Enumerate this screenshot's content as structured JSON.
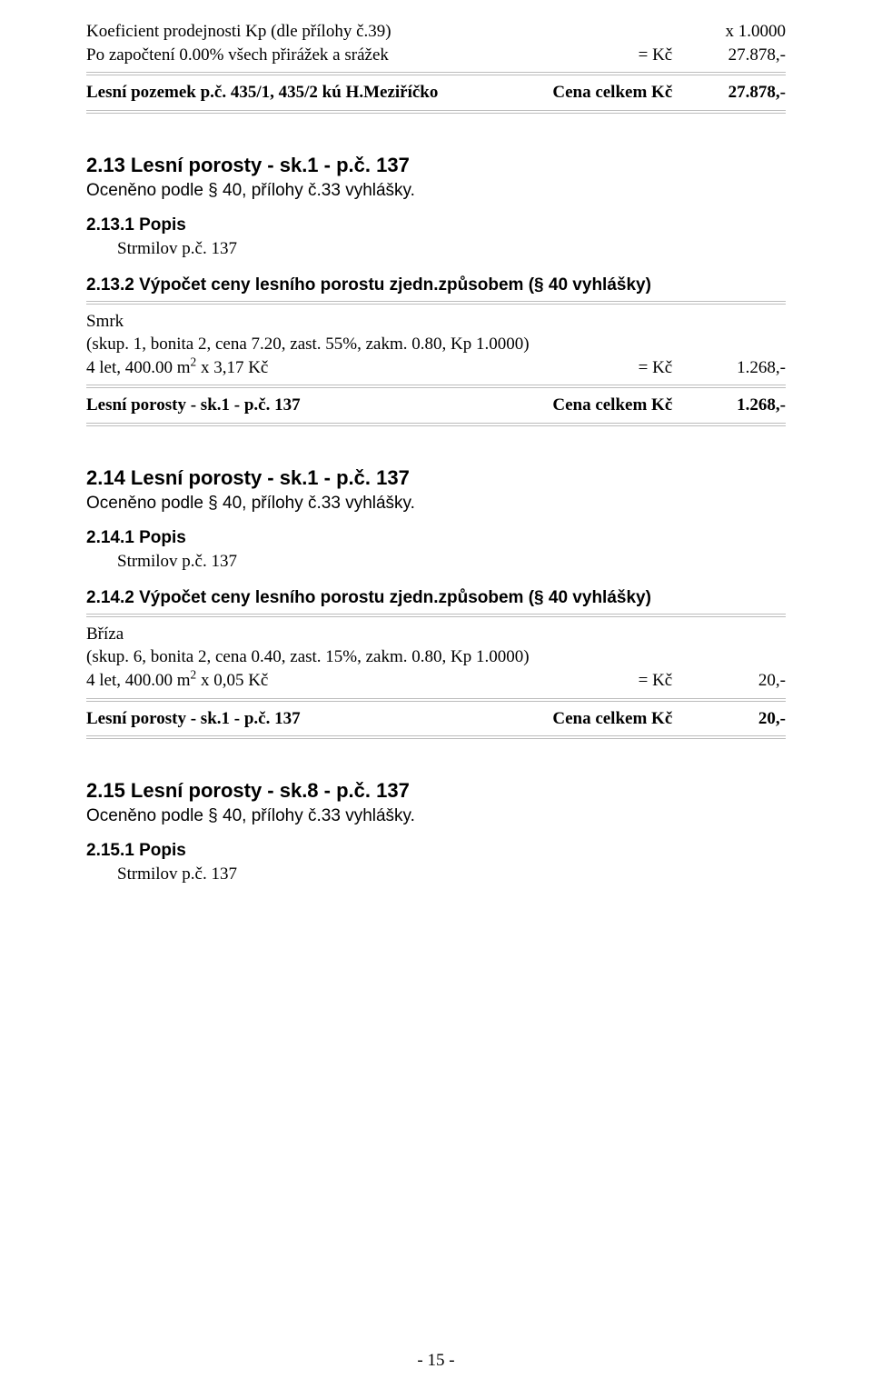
{
  "top": {
    "kp_line_left": "Koeficient prodejnosti Kp (dle přílohy č.39)",
    "kp_line_right": "x 1.0000",
    "zap_left": "Po započtení 0.00% všech přirážek a srážek",
    "zap_eq": "= Kč",
    "zap_val": "27.878,-",
    "total_left": "Lesní pozemek p.č. 435/1, 435/2 kú H.Meziříčko",
    "total_mid": "Cena celkem Kč",
    "total_val": "27.878,-"
  },
  "s13": {
    "heading": "2.13 Lesní porosty - sk.1 - p.č. 137",
    "sub": "Oceněno podle § 40, přílohy č.33 vyhlášky.",
    "popis_h": "2.13.1 Popis",
    "popis_txt": "Strmilov p.č. 137",
    "vypocet_h": "2.13.2 Výpočet ceny lesního porostu zjedn.způsobem (§ 40 vyhlášky)",
    "species": "Smrk",
    "skup": "(skup. 1, bonita 2, cena 7.20, zast. 55%, zakm. 0.80, Kp 1.0000)",
    "line_left_a": "4 let, 400.00 m",
    "line_left_sup": "2",
    "line_left_b": " x 3,17 Kč",
    "eq": "= Kč",
    "val": "1.268,-",
    "total_left": "Lesní porosty - sk.1 - p.č. 137",
    "total_mid": "Cena celkem Kč",
    "total_val": "1.268,-"
  },
  "s14": {
    "heading": "2.14 Lesní porosty - sk.1 - p.č. 137",
    "sub": "Oceněno podle § 40, přílohy č.33 vyhlášky.",
    "popis_h": "2.14.1 Popis",
    "popis_txt": "Strmilov p.č. 137",
    "vypocet_h": "2.14.2 Výpočet ceny lesního porostu zjedn.způsobem (§ 40 vyhlášky)",
    "species": "Bříza",
    "skup": "(skup. 6, bonita 2, cena 0.40, zast. 15%, zakm. 0.80, Kp 1.0000)",
    "line_left_a": "4 let, 400.00 m",
    "line_left_sup": "2",
    "line_left_b": " x 0,05 Kč",
    "eq": "= Kč",
    "val": "20,-",
    "total_left": "Lesní porosty - sk.1 - p.č. 137",
    "total_mid": "Cena celkem Kč",
    "total_val": "20,-"
  },
  "s15": {
    "heading": "2.15 Lesní porosty - sk.8 - p.č. 137",
    "sub": "Oceněno podle § 40, přílohy č.33 vyhlášky.",
    "popis_h": "2.15.1 Popis",
    "popis_txt": "Strmilov p.č. 137"
  },
  "footer": "- 15 -"
}
